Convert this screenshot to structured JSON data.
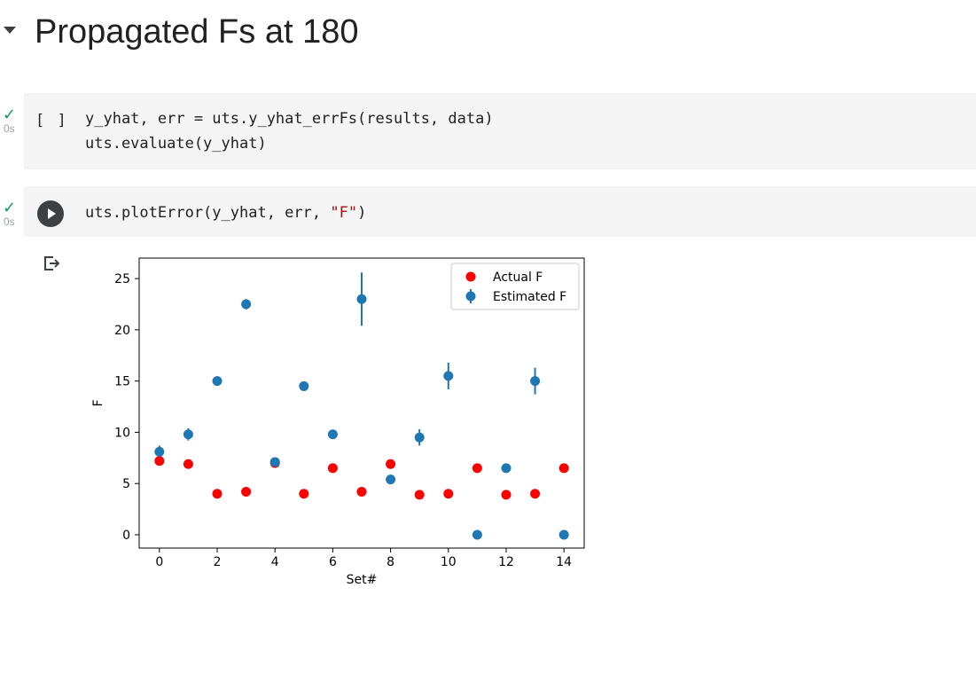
{
  "section": {
    "title": "Propagated Fs at 180"
  },
  "cells": [
    {
      "status": "✓",
      "time": "0s",
      "exec_count": "[ ]",
      "lines": [
        "y_yhat, err = uts.y_yhat_errFs(results, data)",
        "uts.evaluate(y_yhat)"
      ]
    },
    {
      "status": "✓",
      "time": "0s",
      "code_prefix": "uts.plotError(y_yhat, err, ",
      "code_string": "\"F\"",
      "code_suffix": ")"
    }
  ],
  "output_icon": "output-redirect-icon",
  "chart_data": {
    "type": "scatter",
    "xlabel": "Set#",
    "ylabel": "F",
    "xlim": [
      -0.7,
      14.7
    ],
    "ylim": [
      -1.3,
      27
    ],
    "xticks": [
      0,
      2,
      4,
      6,
      8,
      10,
      12,
      14
    ],
    "yticks": [
      0,
      5,
      10,
      15,
      20,
      25
    ],
    "legend": "top-right",
    "series": [
      {
        "name": "Actual F",
        "color": "#ff0000",
        "x": [
          0,
          1,
          2,
          3,
          4,
          5,
          6,
          7,
          8,
          9,
          10,
          11,
          12,
          13,
          14
        ],
        "y": [
          7.2,
          6.9,
          4.0,
          4.2,
          7.0,
          4.0,
          6.5,
          4.2,
          6.9,
          3.9,
          4.0,
          6.5,
          3.9,
          4.0,
          6.5
        ]
      },
      {
        "name": "Estimated F",
        "color": "#1f77b4",
        "x": [
          0,
          1,
          2,
          3,
          4,
          5,
          6,
          7,
          8,
          9,
          10,
          11,
          12,
          13,
          14
        ],
        "y": [
          8.1,
          9.8,
          15.0,
          22.5,
          7.1,
          14.5,
          9.8,
          23.0,
          5.4,
          9.5,
          15.5,
          0.0,
          6.5,
          15.0,
          0.0
        ],
        "err": [
          0.6,
          0.6,
          0.2,
          0.5,
          0.3,
          0.1,
          0.2,
          2.6,
          0.1,
          0.8,
          1.3,
          0.0,
          0.1,
          1.3,
          0.0
        ]
      }
    ]
  }
}
